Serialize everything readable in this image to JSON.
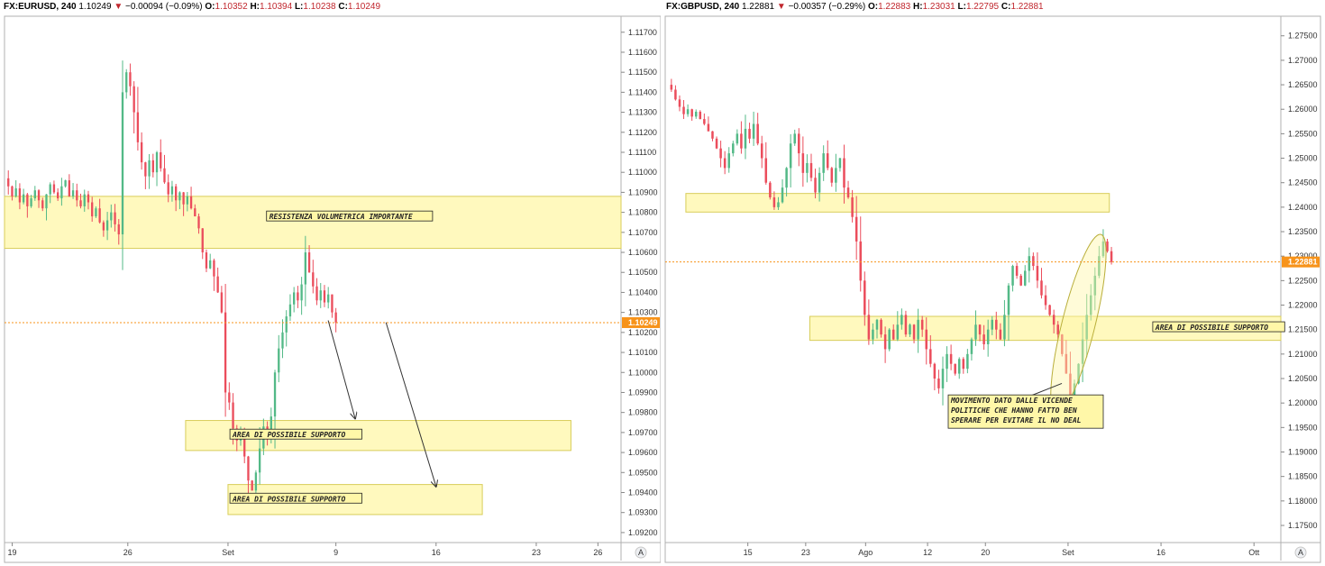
{
  "chart_data": [
    {
      "type": "candlestick",
      "symbol": "FX:EURUSD",
      "interval": "240",
      "last": "1.10249",
      "change": "−0.00094 (−0.09%)",
      "ohlc": {
        "o_label": "O:",
        "o": "1.10352",
        "h_label": "H:",
        "h": "1.10394",
        "l_label": "L:",
        "l": "1.10238",
        "c_label": "C:",
        "c": "1.10249"
      },
      "current_price": 1.10249,
      "current_price_label": "1.10249",
      "ylim": [
        1.0915,
        1.1178
      ],
      "yticks": [
        1.117,
        1.116,
        1.115,
        1.114,
        1.113,
        1.112,
        1.111,
        1.11,
        1.109,
        1.108,
        1.107,
        1.106,
        1.105,
        1.104,
        1.103,
        1.102,
        1.101,
        1.1,
        1.099,
        1.098,
        1.097,
        1.096,
        1.095,
        1.094,
        1.093,
        1.092
      ],
      "ytick_labels": [
        "1.11700",
        "1.11600",
        "1.11500",
        "1.11400",
        "1.11300",
        "1.11200",
        "1.11100",
        "1.11000",
        "1.10900",
        "1.10800",
        "1.10700",
        "1.10600",
        "1.10500",
        "1.10400",
        "1.10300",
        "1.10200",
        "1.10100",
        "1.10000",
        "1.09900",
        "1.09800",
        "1.09700",
        "1.09600",
        "1.09500",
        "1.09400",
        "1.09300",
        "1.09200"
      ],
      "xticks": [
        {
          "label": "19",
          "t": 2
        },
        {
          "label": "26",
          "t": 32
        },
        {
          "label": "Set",
          "t": 58
        },
        {
          "label": "9",
          "t": 86
        },
        {
          "label": "16",
          "t": 112
        },
        {
          "label": "23",
          "t": 138
        },
        {
          "label": "26",
          "t": 154
        }
      ],
      "t_range": [
        0,
        160
      ],
      "closes": [
        1.1093,
        1.1088,
        1.1092,
        1.1085,
        1.1089,
        1.1083,
        1.1087,
        1.1091,
        1.1086,
        1.1082,
        1.1089,
        1.1094,
        1.109,
        1.1087,
        1.1093,
        1.1096,
        1.1088,
        1.1091,
        1.1086,
        1.1083,
        1.1089,
        1.1085,
        1.1078,
        1.1082,
        1.1075,
        1.1071,
        1.1076,
        1.108,
        1.1074,
        1.1069,
        1.114,
        1.115,
        1.1143,
        1.113,
        1.1115,
        1.1105,
        1.1098,
        1.1106,
        1.11,
        1.111,
        1.1102,
        1.1095,
        1.1089,
        1.1093,
        1.1086,
        1.109,
        1.1084,
        1.1088,
        1.1082,
        1.1078,
        1.1072,
        1.106,
        1.1052,
        1.1056,
        1.1048,
        1.104,
        1.103,
        1.099,
        1.0985,
        1.0972,
        1.0966,
        1.097,
        1.0958,
        1.0946,
        1.0941,
        1.095,
        1.0962,
        1.0973,
        1.0968,
        1.0978,
        1.1,
        1.1012,
        1.102,
        1.1028,
        1.1034,
        1.104,
        1.1036,
        1.1044,
        1.106,
        1.105,
        1.1043,
        1.1036,
        1.1041,
        1.1035,
        1.1039,
        1.103,
        1.1025
      ],
      "bands": [
        {
          "label": "RESISTENZA VOLUMETRICA IMPORTANTE",
          "y_top": 1.1088,
          "y_bottom": 1.1062,
          "t_start": 0,
          "t_end": 160
        },
        {
          "label": "AREA DI POSSIBILE SUPPORTO",
          "y_top": 1.0976,
          "y_bottom": 1.0961,
          "t_start": 47,
          "t_end": 147
        },
        {
          "label": "AREA DI POSSIBILE SUPPORTO",
          "y_top": 1.0944,
          "y_bottom": 1.0929,
          "t_start": 58,
          "t_end": 124
        }
      ],
      "arrows": [
        {
          "from": [
            84,
            1.1026
          ],
          "to": [
            91,
            1.0977
          ]
        },
        {
          "from": [
            99,
            1.1025
          ],
          "to": [
            112,
            1.0943
          ]
        }
      ],
      "axis_badge": "A"
    },
    {
      "type": "candlestick",
      "symbol": "FX:GBPUSD",
      "interval": "240",
      "last": "1.22881",
      "change": "−0.00357 (−0.29%)",
      "ohlc": {
        "o_label": "O:",
        "o": "1.22883",
        "h_label": "H:",
        "h": "1.23031",
        "l_label": "L:",
        "l": "1.22795",
        "c_label": "C:",
        "c": "1.22881"
      },
      "current_price": 1.22881,
      "current_price_label": "1.22881",
      "ylim": [
        1.1715,
        1.279
      ],
      "yticks": [
        1.275,
        1.27,
        1.265,
        1.26,
        1.255,
        1.25,
        1.245,
        1.24,
        1.235,
        1.23,
        1.225,
        1.22,
        1.215,
        1.21,
        1.205,
        1.2,
        1.195,
        1.19,
        1.185,
        1.18,
        1.175
      ],
      "ytick_labels": [
        "1.27500",
        "1.27000",
        "1.26500",
        "1.26000",
        "1.25500",
        "1.25000",
        "1.24500",
        "1.24000",
        "1.23500",
        "1.23000",
        "1.22500",
        "1.22000",
        "1.21500",
        "1.21000",
        "1.20500",
        "1.20000",
        "1.19500",
        "1.19000",
        "1.18500",
        "1.18000",
        "1.17500"
      ],
      "xticks": [
        {
          "label": "15",
          "t": 40
        },
        {
          "label": "23",
          "t": 68
        },
        {
          "label": "Ago",
          "t": 97
        },
        {
          "label": "12",
          "t": 127
        },
        {
          "label": "20",
          "t": 155
        },
        {
          "label": "Set",
          "t": 195
        },
        {
          "label": "16",
          "t": 240
        },
        {
          "label": "Ott",
          "t": 285
        }
      ],
      "t_range": [
        0,
        298
      ],
      "closes": [
        1.264,
        1.262,
        1.2605,
        1.259,
        1.26,
        1.2585,
        1.2595,
        1.258,
        1.257,
        1.2555,
        1.254,
        1.252,
        1.25,
        1.248,
        1.251,
        1.253,
        1.255,
        1.252,
        1.256,
        1.254,
        1.257,
        1.253,
        1.25,
        1.245,
        1.242,
        1.24,
        1.241,
        1.244,
        1.248,
        1.253,
        1.255,
        1.251,
        1.247,
        1.249,
        1.246,
        1.243,
        1.247,
        1.251,
        1.248,
        1.245,
        1.248,
        1.25,
        1.244,
        1.242,
        1.238,
        1.233,
        1.225,
        1.218,
        1.213,
        1.215,
        1.217,
        1.214,
        1.211,
        1.215,
        1.213,
        1.216,
        1.218,
        1.214,
        1.216,
        1.213,
        1.217,
        1.215,
        1.211,
        1.208,
        1.205,
        1.203,
        1.207,
        1.21,
        1.208,
        1.206,
        1.209,
        1.207,
        1.21,
        1.213,
        1.216,
        1.214,
        1.212,
        1.215,
        1.217,
        1.215,
        1.213,
        1.218,
        1.224,
        1.228,
        1.226,
        1.224,
        1.227,
        1.23,
        1.228,
        1.225,
        1.222,
        1.22,
        1.218,
        1.216,
        1.214,
        1.21,
        1.206,
        1.2,
        1.204,
        1.208,
        1.213,
        1.218,
        1.222,
        1.226,
        1.23,
        1.233,
        1.231,
        1.2288
      ],
      "bands": [
        {
          "label": "",
          "y_top": 1.2428,
          "y_bottom": 1.239,
          "t_start": 10,
          "t_end": 215
        },
        {
          "label": "AREA DI POSSIBILE SUPPORTO",
          "y_top": 1.2177,
          "y_bottom": 1.2128,
          "t_start": 70,
          "t_end": 298
        }
      ],
      "ellipse": {
        "t_center": 200,
        "y_center": 1.216,
        "t_radius": 8,
        "y_radius": 0.019
      },
      "annotation": {
        "lines": [
          "MOVIMENTO DATO DALLE VICENDE",
          "POLITICHE CHE HANNO FATTO BEN",
          "SPERARE PER EVITARE IL NO DEAL"
        ]
      },
      "arrows": [
        {
          "from": [
            192,
            1.204
          ],
          "to": [
            165,
            1.1995
          ]
        }
      ],
      "axis_badge": "A"
    }
  ]
}
